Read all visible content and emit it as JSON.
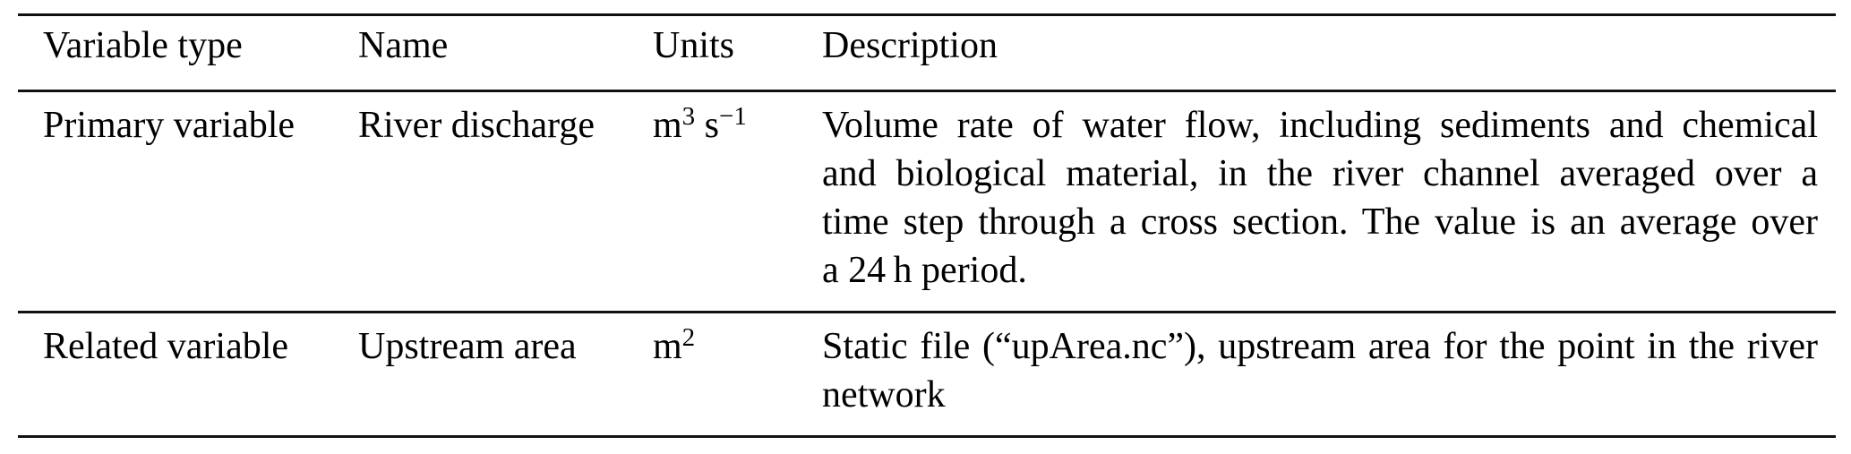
{
  "table": {
    "columns": [
      "Variable type",
      "Name",
      "Units",
      "Description"
    ],
    "rows": [
      {
        "variable_type": "Primary variable",
        "name": "River discharge",
        "units": {
          "base1": "m",
          "sup1": "3",
          "base2": " s",
          "sup2": "−1"
        },
        "description": "Volume rate of water flow, including sediments and chemical and biological material, in the river channel averaged over a time step through a cross section. The value is an average over a 24 h period.",
        "description_lines": [
          "Volume rate of water flow, including sediments and chemical",
          "and biological material, in the river channel averaged over a",
          "time step through a cross section. The value is an average over",
          "a 24 h period."
        ]
      },
      {
        "variable_type": "Related variable",
        "name": "Upstream area",
        "units": {
          "base1": "m",
          "sup1": "2",
          "base2": "",
          "sup2": ""
        },
        "description": "Static file (“upArea.nc”), upstream area for the point in the river network",
        "description_lines": [
          "Static file (“upArea.nc”), upstream area for the point in the river",
          "network"
        ]
      }
    ]
  },
  "colors": {
    "text": "#000000",
    "rule": "#111111",
    "background": "#ffffff"
  }
}
